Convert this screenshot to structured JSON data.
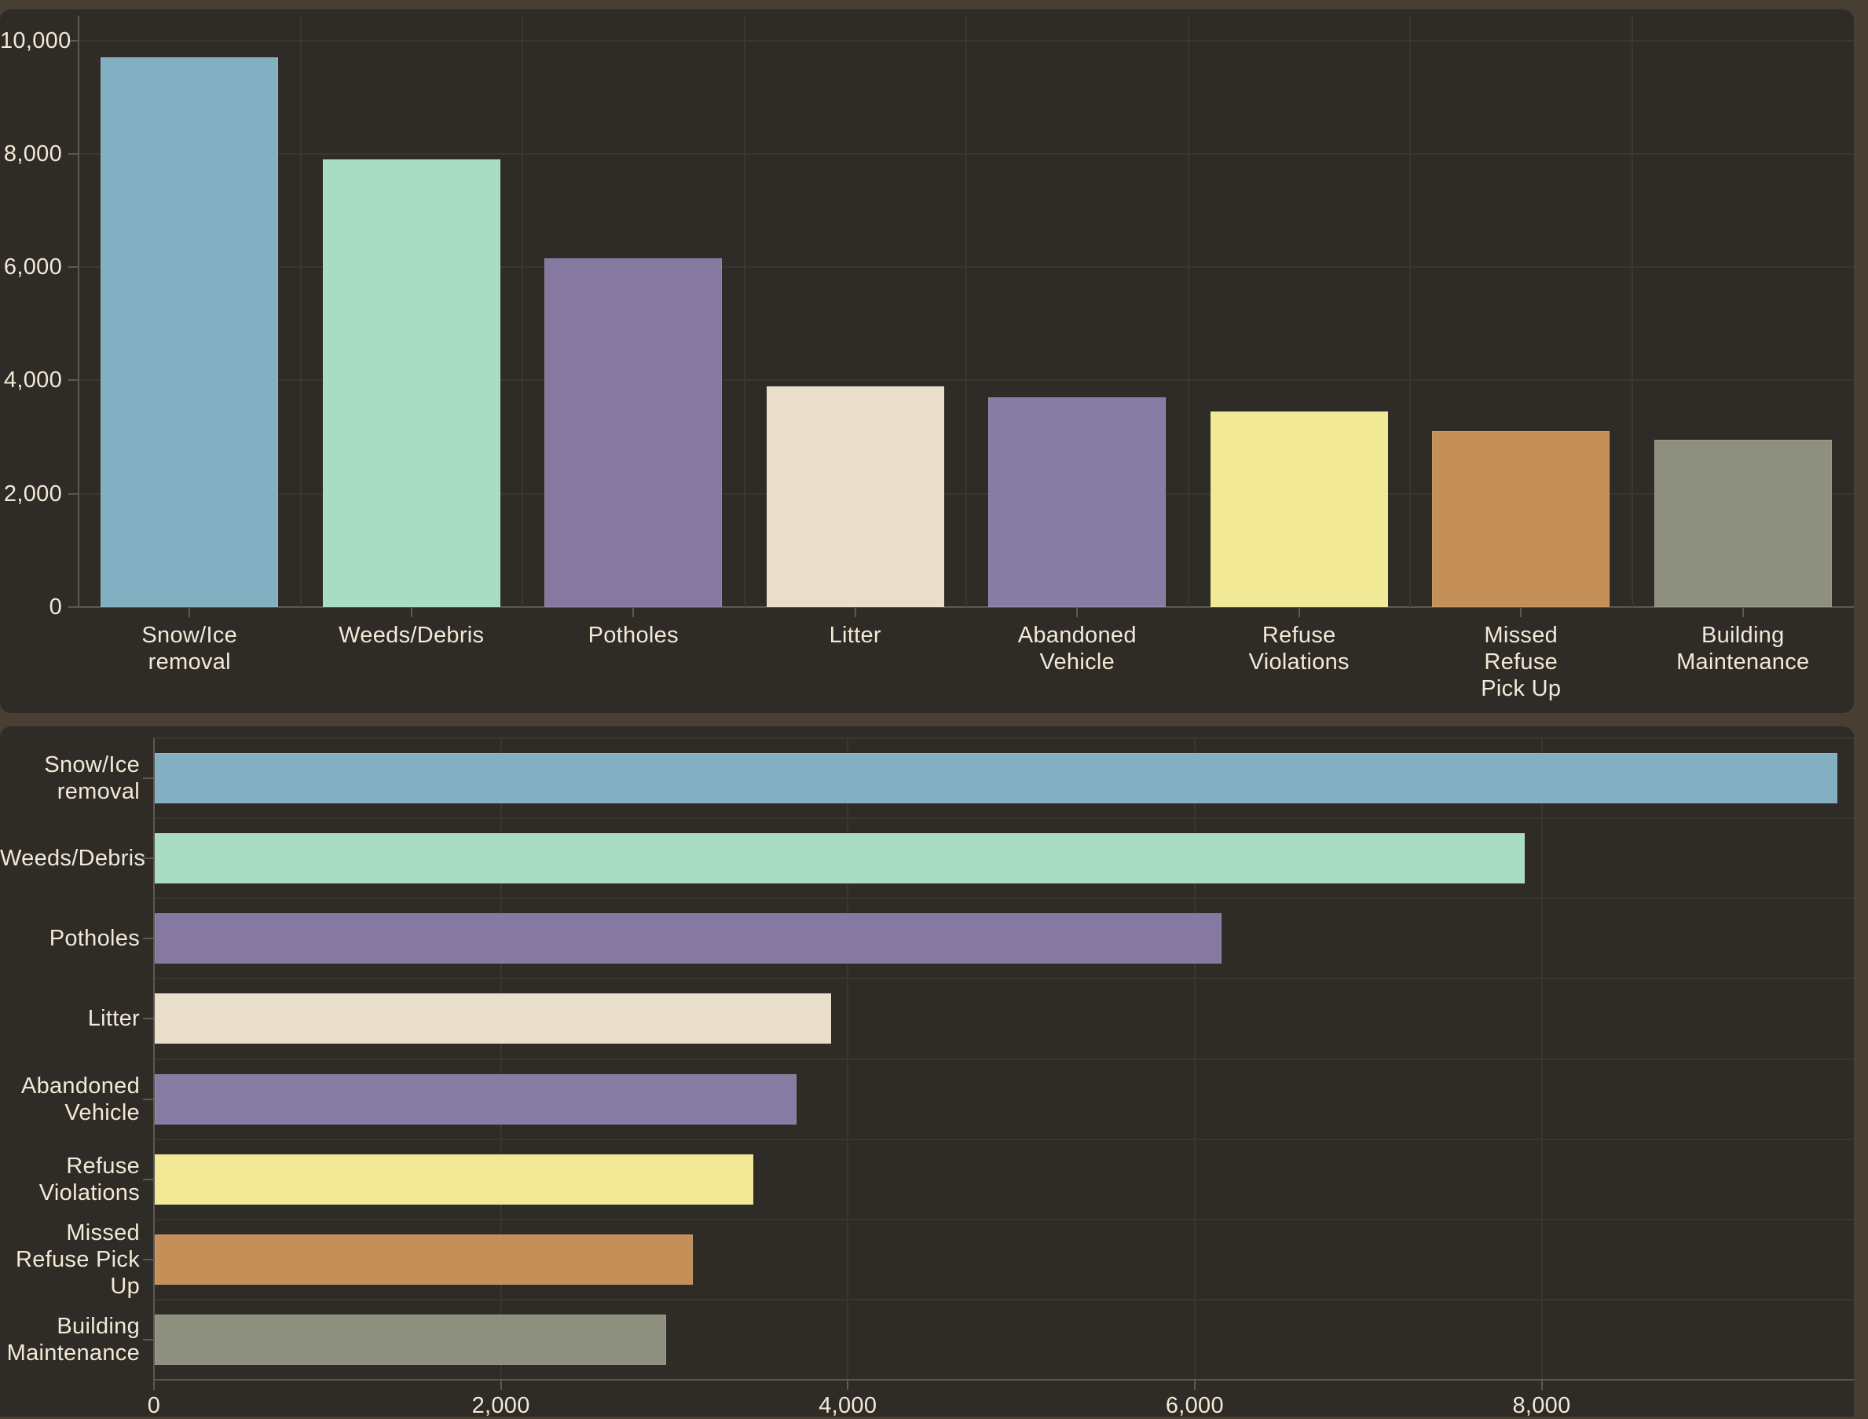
{
  "page": {
    "background_color": "#473E34",
    "panel_background_color": "#2F2B27",
    "text_color": "#F2E9D6",
    "gridline_color": "#3B362F",
    "axis_color": "#5E594F"
  },
  "chart_data": [
    {
      "type": "bar",
      "orientation": "vertical",
      "title": "",
      "xlabel": "",
      "ylabel": "",
      "categories": [
        "Snow/Ice removal",
        "Weeds/Debris",
        "Potholes",
        "Litter",
        "Abandoned Vehicle",
        "Refuse Violations",
        "Missed Refuse Pick Up",
        "Building Maintenance"
      ],
      "category_label_lines": [
        [
          "Snow/Ice",
          "removal"
        ],
        [
          "Weeds/Debris"
        ],
        [
          "Potholes"
        ],
        [
          "Litter"
        ],
        [
          "Abandoned",
          "Vehicle"
        ],
        [
          "Refuse",
          "Violations"
        ],
        [
          "Missed",
          "Refuse",
          "Pick Up"
        ],
        [
          "Building",
          "Maintenance"
        ]
      ],
      "values": [
        9700,
        7900,
        6150,
        3900,
        3700,
        3450,
        3100,
        2950
      ],
      "bar_colors": [
        "#82AFC2",
        "#A8DCC3",
        "#8578A1",
        "#E8DECA",
        "#867CA4",
        "#F2E996",
        "#C49058",
        "#8E907F"
      ],
      "ylim": [
        0,
        10000
      ],
      "yticks": [
        0,
        2000,
        4000,
        6000,
        8000,
        10000
      ],
      "ytick_labels": [
        "0",
        "2,000",
        "4,000",
        "6,000",
        "8,000",
        "10,000"
      ],
      "grid": true,
      "legend": false
    },
    {
      "type": "bar",
      "orientation": "horizontal",
      "title": "",
      "xlabel": "",
      "ylabel": "",
      "categories": [
        "Snow/Ice removal",
        "Weeds/Debris",
        "Potholes",
        "Litter",
        "Abandoned Vehicle",
        "Refuse Violations",
        "Missed Refuse Pick Up",
        "Building Maintenance"
      ],
      "category_label_lines": [
        [
          "Snow/Ice",
          "removal"
        ],
        [
          "Weeds/Debris"
        ],
        [
          "Potholes"
        ],
        [
          "Litter"
        ],
        [
          "Abandoned",
          "Vehicle"
        ],
        [
          "Refuse",
          "Violations"
        ],
        [
          "Missed",
          "Refuse Pick",
          "Up"
        ],
        [
          "Building",
          "Maintenance"
        ]
      ],
      "values": [
        9700,
        7900,
        6150,
        3900,
        3700,
        3450,
        3100,
        2950
      ],
      "bar_colors": [
        "#82AFC2",
        "#A8DCC3",
        "#8578A1",
        "#E8DECA",
        "#867CA4",
        "#F2E996",
        "#C49058",
        "#8E907F"
      ],
      "xlim": [
        0,
        9800
      ],
      "xticks": [
        0,
        2000,
        4000,
        6000,
        8000
      ],
      "xtick_labels": [
        "0",
        "2,000",
        "4,000",
        "6,000",
        "8,000"
      ],
      "grid": true,
      "legend": false
    }
  ]
}
